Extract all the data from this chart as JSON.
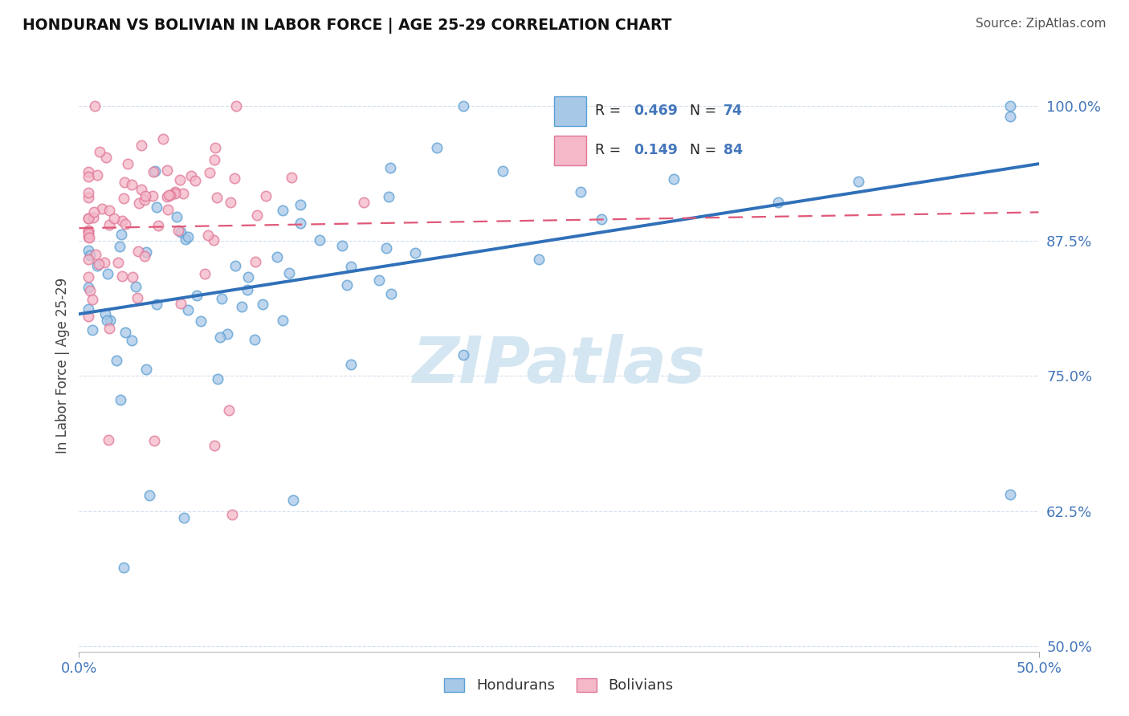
{
  "title": "HONDURAN VS BOLIVIAN IN LABOR FORCE | AGE 25-29 CORRELATION CHART",
  "source_text": "Source: ZipAtlas.com",
  "ylabel": "In Labor Force | Age 25-29",
  "xlim": [
    0.0,
    0.5
  ],
  "ylim": [
    0.495,
    1.025
  ],
  "ytick_labels": [
    "50.0%",
    "62.5%",
    "75.0%",
    "87.5%",
    "100.0%"
  ],
  "yticks": [
    0.5,
    0.625,
    0.75,
    0.875,
    1.0
  ],
  "blue_R": 0.469,
  "blue_N": 74,
  "pink_R": 0.149,
  "pink_N": 84,
  "blue_fill": "#a8c8e8",
  "blue_edge": "#5a9fd4",
  "pink_fill": "#f4b8c8",
  "pink_edge": "#e07898",
  "blue_line": "#3070b8",
  "pink_line": "#e05878",
  "legend_blue_fill": "#a8c8e8",
  "legend_pink_fill": "#f4b8c8",
  "watermark_color": "#d0e4f0",
  "tick_color": "#4477bb",
  "grid_color": "#c8d8e8"
}
